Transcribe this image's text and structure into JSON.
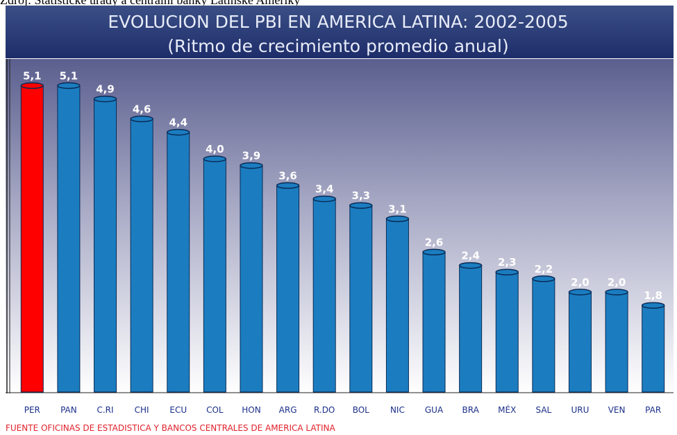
{
  "source_note": "Zdroj: Statistické úřady a centrální banky Latinské Ameriky",
  "chart_data": {
    "type": "bar",
    "title": "EVOLUCION DEL PBI EN AMERICA LATINA: 2002-2005",
    "subtitle": "(Ritmo de crecimiento promedio anual)",
    "footer": "FUENTE OFICINAS DE ESTADISTICA Y BANCOS CENTRALES DE AMERICA LATINA",
    "categories": [
      "PER",
      "PAN",
      "C.RI",
      "CHI",
      "ECU",
      "COL",
      "HON",
      "ARG",
      "R.DO",
      "BOL",
      "NIC",
      "GUA",
      "BRA",
      "MÉX",
      "SAL",
      "URU",
      "VEN",
      "PAR"
    ],
    "values": [
      5.1,
      5.1,
      4.9,
      4.6,
      4.4,
      4.0,
      3.9,
      3.6,
      3.4,
      3.3,
      3.1,
      2.6,
      2.4,
      2.3,
      2.2,
      2.0,
      2.0,
      1.8
    ],
    "value_labels": [
      "5,1",
      "5,1",
      "4,9",
      "4,6",
      "4,4",
      "4,0",
      "3,9",
      "3,6",
      "3,4",
      "3,3",
      "3,1",
      "2,6",
      "2,4",
      "2,3",
      "2,2",
      "2,0",
      "2,0",
      "1,8"
    ],
    "colors": [
      "#ff0000",
      "#1b7dc0",
      "#1b7dc0",
      "#1b7dc0",
      "#1b7dc0",
      "#1b7dc0",
      "#1b7dc0",
      "#1b7dc0",
      "#1b7dc0",
      "#1b7dc0",
      "#1b7dc0",
      "#1b7dc0",
      "#1b7dc0",
      "#1b7dc0",
      "#1b7dc0",
      "#1b7dc0",
      "#1b7dc0",
      "#1b7dc0"
    ],
    "ylim": [
      0.5,
      5.5
    ]
  }
}
